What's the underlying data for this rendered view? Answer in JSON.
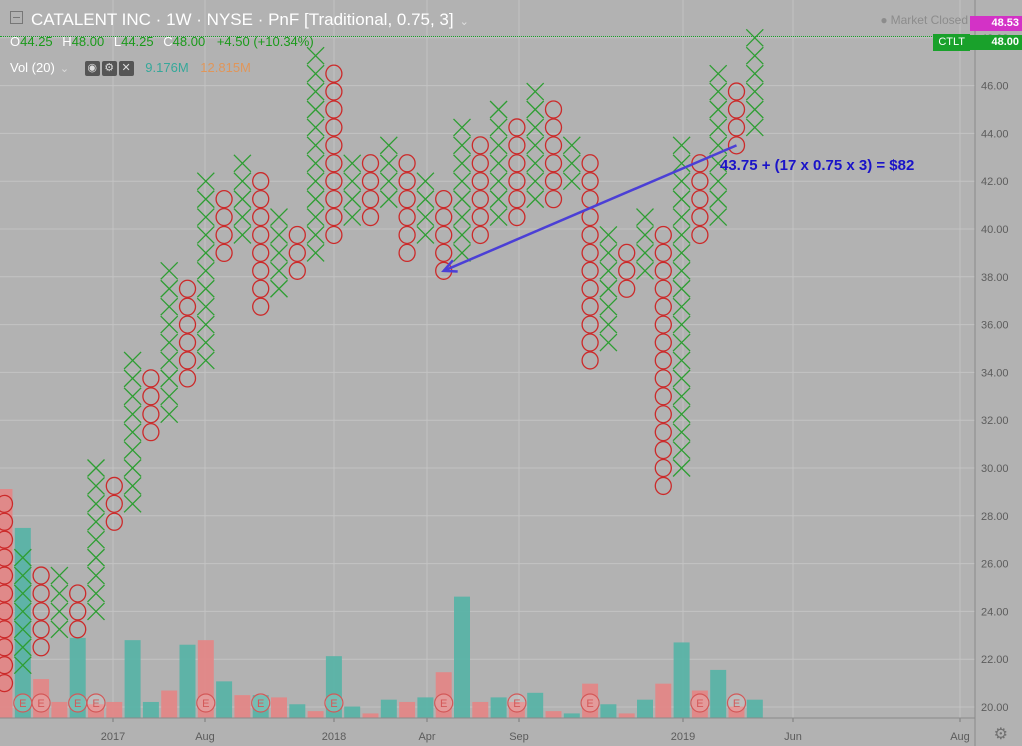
{
  "header": {
    "symbol_title": "CATALENT INC · 1W · NYSE · PnF [Traditional, 0.75, 3]",
    "ohlc": {
      "o_label": "O",
      "o": "44.25",
      "h_label": "H",
      "h": "48.00",
      "l_label": "L",
      "l": "44.25",
      "c_label": "C",
      "c": "48.00",
      "change": "+4.50 (+10.34%)"
    },
    "volume": {
      "label": "Vol (20)",
      "value1": "9.176M",
      "value2": "12.815M"
    },
    "market_status": "Market Closed"
  },
  "price_tags": {
    "high": "48.53",
    "symbol": "CTLT",
    "last": "48.00"
  },
  "annotation": {
    "text": "43.75 + (17 x 0.75 x 3) = $82"
  },
  "colors": {
    "background": "#b2b2b2",
    "x_color": "#2e9e33",
    "o_color": "#cc2a2a",
    "vol_up": "#5ab3a6",
    "vol_down": "#e38787",
    "arrow": "#4b3fd6",
    "annotation_text": "#1a13c9",
    "earnings_badge": "#d35858"
  },
  "chart_data": {
    "type": "point-and-figure",
    "box_size": 0.75,
    "reversal": 3,
    "y_axis": {
      "range": [
        19.3,
        49.0
      ],
      "tick_labels": [
        "20.00",
        "22.00",
        "24.00",
        "26.00",
        "28.00",
        "30.00",
        "32.00",
        "34.00",
        "36.00",
        "38.00",
        "40.00",
        "42.00",
        "44.00",
        "46.00",
        "48.00"
      ]
    },
    "x_axis": {
      "tick_labels": [
        "2017",
        "Aug",
        "2018",
        "Apr",
        "Sep",
        "2019",
        "Jun",
        "Aug"
      ]
    },
    "columns": [
      {
        "type": "O",
        "from": 21.0,
        "to": 28.5
      },
      {
        "type": "X",
        "from": 21.75,
        "to": 26.25
      },
      {
        "type": "O",
        "from": 22.5,
        "to": 25.5
      },
      {
        "type": "X",
        "from": 23.25,
        "to": 25.5
      },
      {
        "type": "O",
        "from": 23.25,
        "to": 24.75
      },
      {
        "type": "X",
        "from": 24.0,
        "to": 30.0
      },
      {
        "type": "O",
        "from": 27.75,
        "to": 29.25
      },
      {
        "type": "X",
        "from": 28.5,
        "to": 34.5
      },
      {
        "type": "O",
        "from": 31.5,
        "to": 33.75
      },
      {
        "type": "X",
        "from": 32.25,
        "to": 38.25
      },
      {
        "type": "O",
        "from": 33.75,
        "to": 37.5
      },
      {
        "type": "X",
        "from": 34.5,
        "to": 42.0
      },
      {
        "type": "O",
        "from": 39.0,
        "to": 41.25
      },
      {
        "type": "X",
        "from": 39.75,
        "to": 42.75
      },
      {
        "type": "O",
        "from": 36.75,
        "to": 42.0
      },
      {
        "type": "X",
        "from": 37.5,
        "to": 40.5
      },
      {
        "type": "O",
        "from": 38.25,
        "to": 39.75
      },
      {
        "type": "X",
        "from": 39.0,
        "to": 47.25
      },
      {
        "type": "O",
        "from": 39.75,
        "to": 46.5
      },
      {
        "type": "X",
        "from": 40.5,
        "to": 42.75
      },
      {
        "type": "O",
        "from": 40.5,
        "to": 42.75
      },
      {
        "type": "X",
        "from": 41.25,
        "to": 43.5
      },
      {
        "type": "O",
        "from": 39.0,
        "to": 42.75
      },
      {
        "type": "X",
        "from": 39.75,
        "to": 42.0
      },
      {
        "type": "O",
        "from": 38.25,
        "to": 41.25
      },
      {
        "type": "X",
        "from": 39.0,
        "to": 44.25
      },
      {
        "type": "O",
        "from": 39.75,
        "to": 43.5
      },
      {
        "type": "X",
        "from": 40.5,
        "to": 45.0
      },
      {
        "type": "O",
        "from": 40.5,
        "to": 44.25
      },
      {
        "type": "X",
        "from": 41.25,
        "to": 45.75
      },
      {
        "type": "O",
        "from": 41.25,
        "to": 45.0
      },
      {
        "type": "X",
        "from": 42.0,
        "to": 43.5
      },
      {
        "type": "O",
        "from": 34.5,
        "to": 42.75
      },
      {
        "type": "X",
        "from": 35.25,
        "to": 39.75
      },
      {
        "type": "O",
        "from": 37.5,
        "to": 39.0
      },
      {
        "type": "X",
        "from": 38.25,
        "to": 40.5
      },
      {
        "type": "O",
        "from": 29.25,
        "to": 39.75
      },
      {
        "type": "X",
        "from": 30.0,
        "to": 43.5
      },
      {
        "type": "O",
        "from": 39.75,
        "to": 42.75
      },
      {
        "type": "X",
        "from": 40.5,
        "to": 46.5
      },
      {
        "type": "O",
        "from": 43.5,
        "to": 45.75
      },
      {
        "type": "X",
        "from": 44.25,
        "to": 48.0
      }
    ],
    "volume_bars": [
      {
        "color": "down",
        "value": 1.0
      },
      {
        "color": "up",
        "value": 0.83
      },
      {
        "color": "down",
        "value": 0.17
      },
      {
        "color": "down",
        "value": 0.07
      },
      {
        "color": "up",
        "value": 0.35
      },
      {
        "color": "down",
        "value": 0.06
      },
      {
        "color": "down",
        "value": 0.07
      },
      {
        "color": "up",
        "value": 0.34
      },
      {
        "color": "up",
        "value": 0.07
      },
      {
        "color": "down",
        "value": 0.12
      },
      {
        "color": "up",
        "value": 0.32
      },
      {
        "color": "down",
        "value": 0.34
      },
      {
        "color": "up",
        "value": 0.16
      },
      {
        "color": "down",
        "value": 0.1
      },
      {
        "color": "up",
        "value": 0.1
      },
      {
        "color": "down",
        "value": 0.09
      },
      {
        "color": "up",
        "value": 0.06
      },
      {
        "color": "down",
        "value": 0.03
      },
      {
        "color": "up",
        "value": 0.27
      },
      {
        "color": "up",
        "value": 0.05
      },
      {
        "color": "down",
        "value": 0.02
      },
      {
        "color": "up",
        "value": 0.08
      },
      {
        "color": "down",
        "value": 0.07
      },
      {
        "color": "up",
        "value": 0.09
      },
      {
        "color": "down",
        "value": 0.2
      },
      {
        "color": "up",
        "value": 0.53
      },
      {
        "color": "down",
        "value": 0.07
      },
      {
        "color": "up",
        "value": 0.09
      },
      {
        "color": "down",
        "value": 0.07
      },
      {
        "color": "up",
        "value": 0.11
      },
      {
        "color": "down",
        "value": 0.03
      },
      {
        "color": "up",
        "value": 0.02
      },
      {
        "color": "down",
        "value": 0.15
      },
      {
        "color": "up",
        "value": 0.06
      },
      {
        "color": "down",
        "value": 0.02
      },
      {
        "color": "up",
        "value": 0.08
      },
      {
        "color": "down",
        "value": 0.15
      },
      {
        "color": "up",
        "value": 0.33
      },
      {
        "color": "down",
        "value": 0.12
      },
      {
        "color": "up",
        "value": 0.21
      },
      {
        "color": "down",
        "value": 0.05
      },
      {
        "color": "up",
        "value": 0.08
      }
    ],
    "earnings_marker_columns": [
      1,
      2,
      4,
      5,
      11,
      14,
      18,
      24,
      28,
      32,
      38,
      40
    ],
    "earnings_label": "E",
    "annotation": {
      "text_ref": "annotation.text",
      "arrow_from": {
        "column": 40,
        "price": 43.5
      },
      "arrow_to": {
        "column": 24,
        "price": 38.25
      }
    }
  }
}
